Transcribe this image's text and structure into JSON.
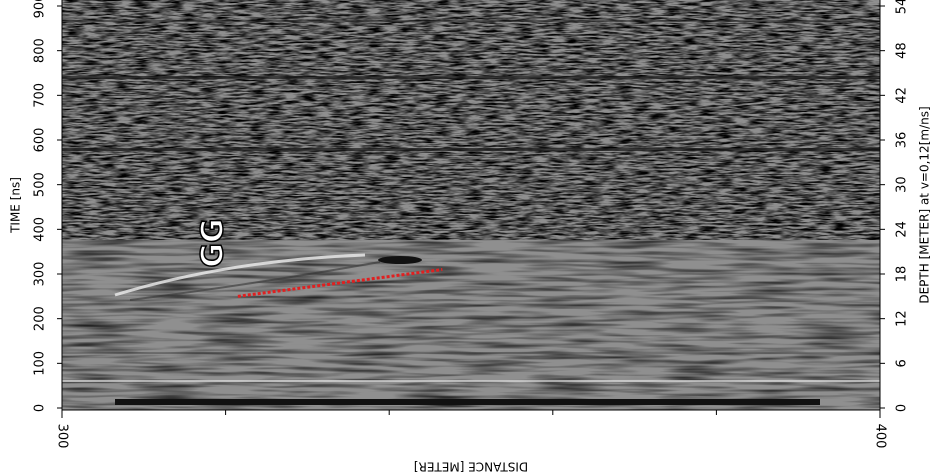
{
  "chart_data": {
    "type": "radargram",
    "xlabel": "DISTANCE [METER]",
    "ylabel": "TIME [ns]",
    "y2label": "DEPTH [METER] at v=0,12[m/ns]",
    "xlim": [
      300,
      400
    ],
    "xticks": [
      300,
      400
    ],
    "xminorticks": [
      320,
      340,
      360,
      380
    ],
    "ylim": [
      0,
      900
    ],
    "yticks": [
      0,
      100,
      200,
      300,
      400,
      500,
      600,
      700,
      800,
      900
    ],
    "y2lim": [
      0,
      54
    ],
    "y2ticks": [
      0,
      6,
      12,
      18,
      24,
      30,
      36,
      42,
      48,
      54
    ],
    "annotation": "GG",
    "pick": {
      "x": [
        321.5,
        346.5
      ],
      "y": [
        250,
        310
      ],
      "color": "#e02020"
    }
  }
}
